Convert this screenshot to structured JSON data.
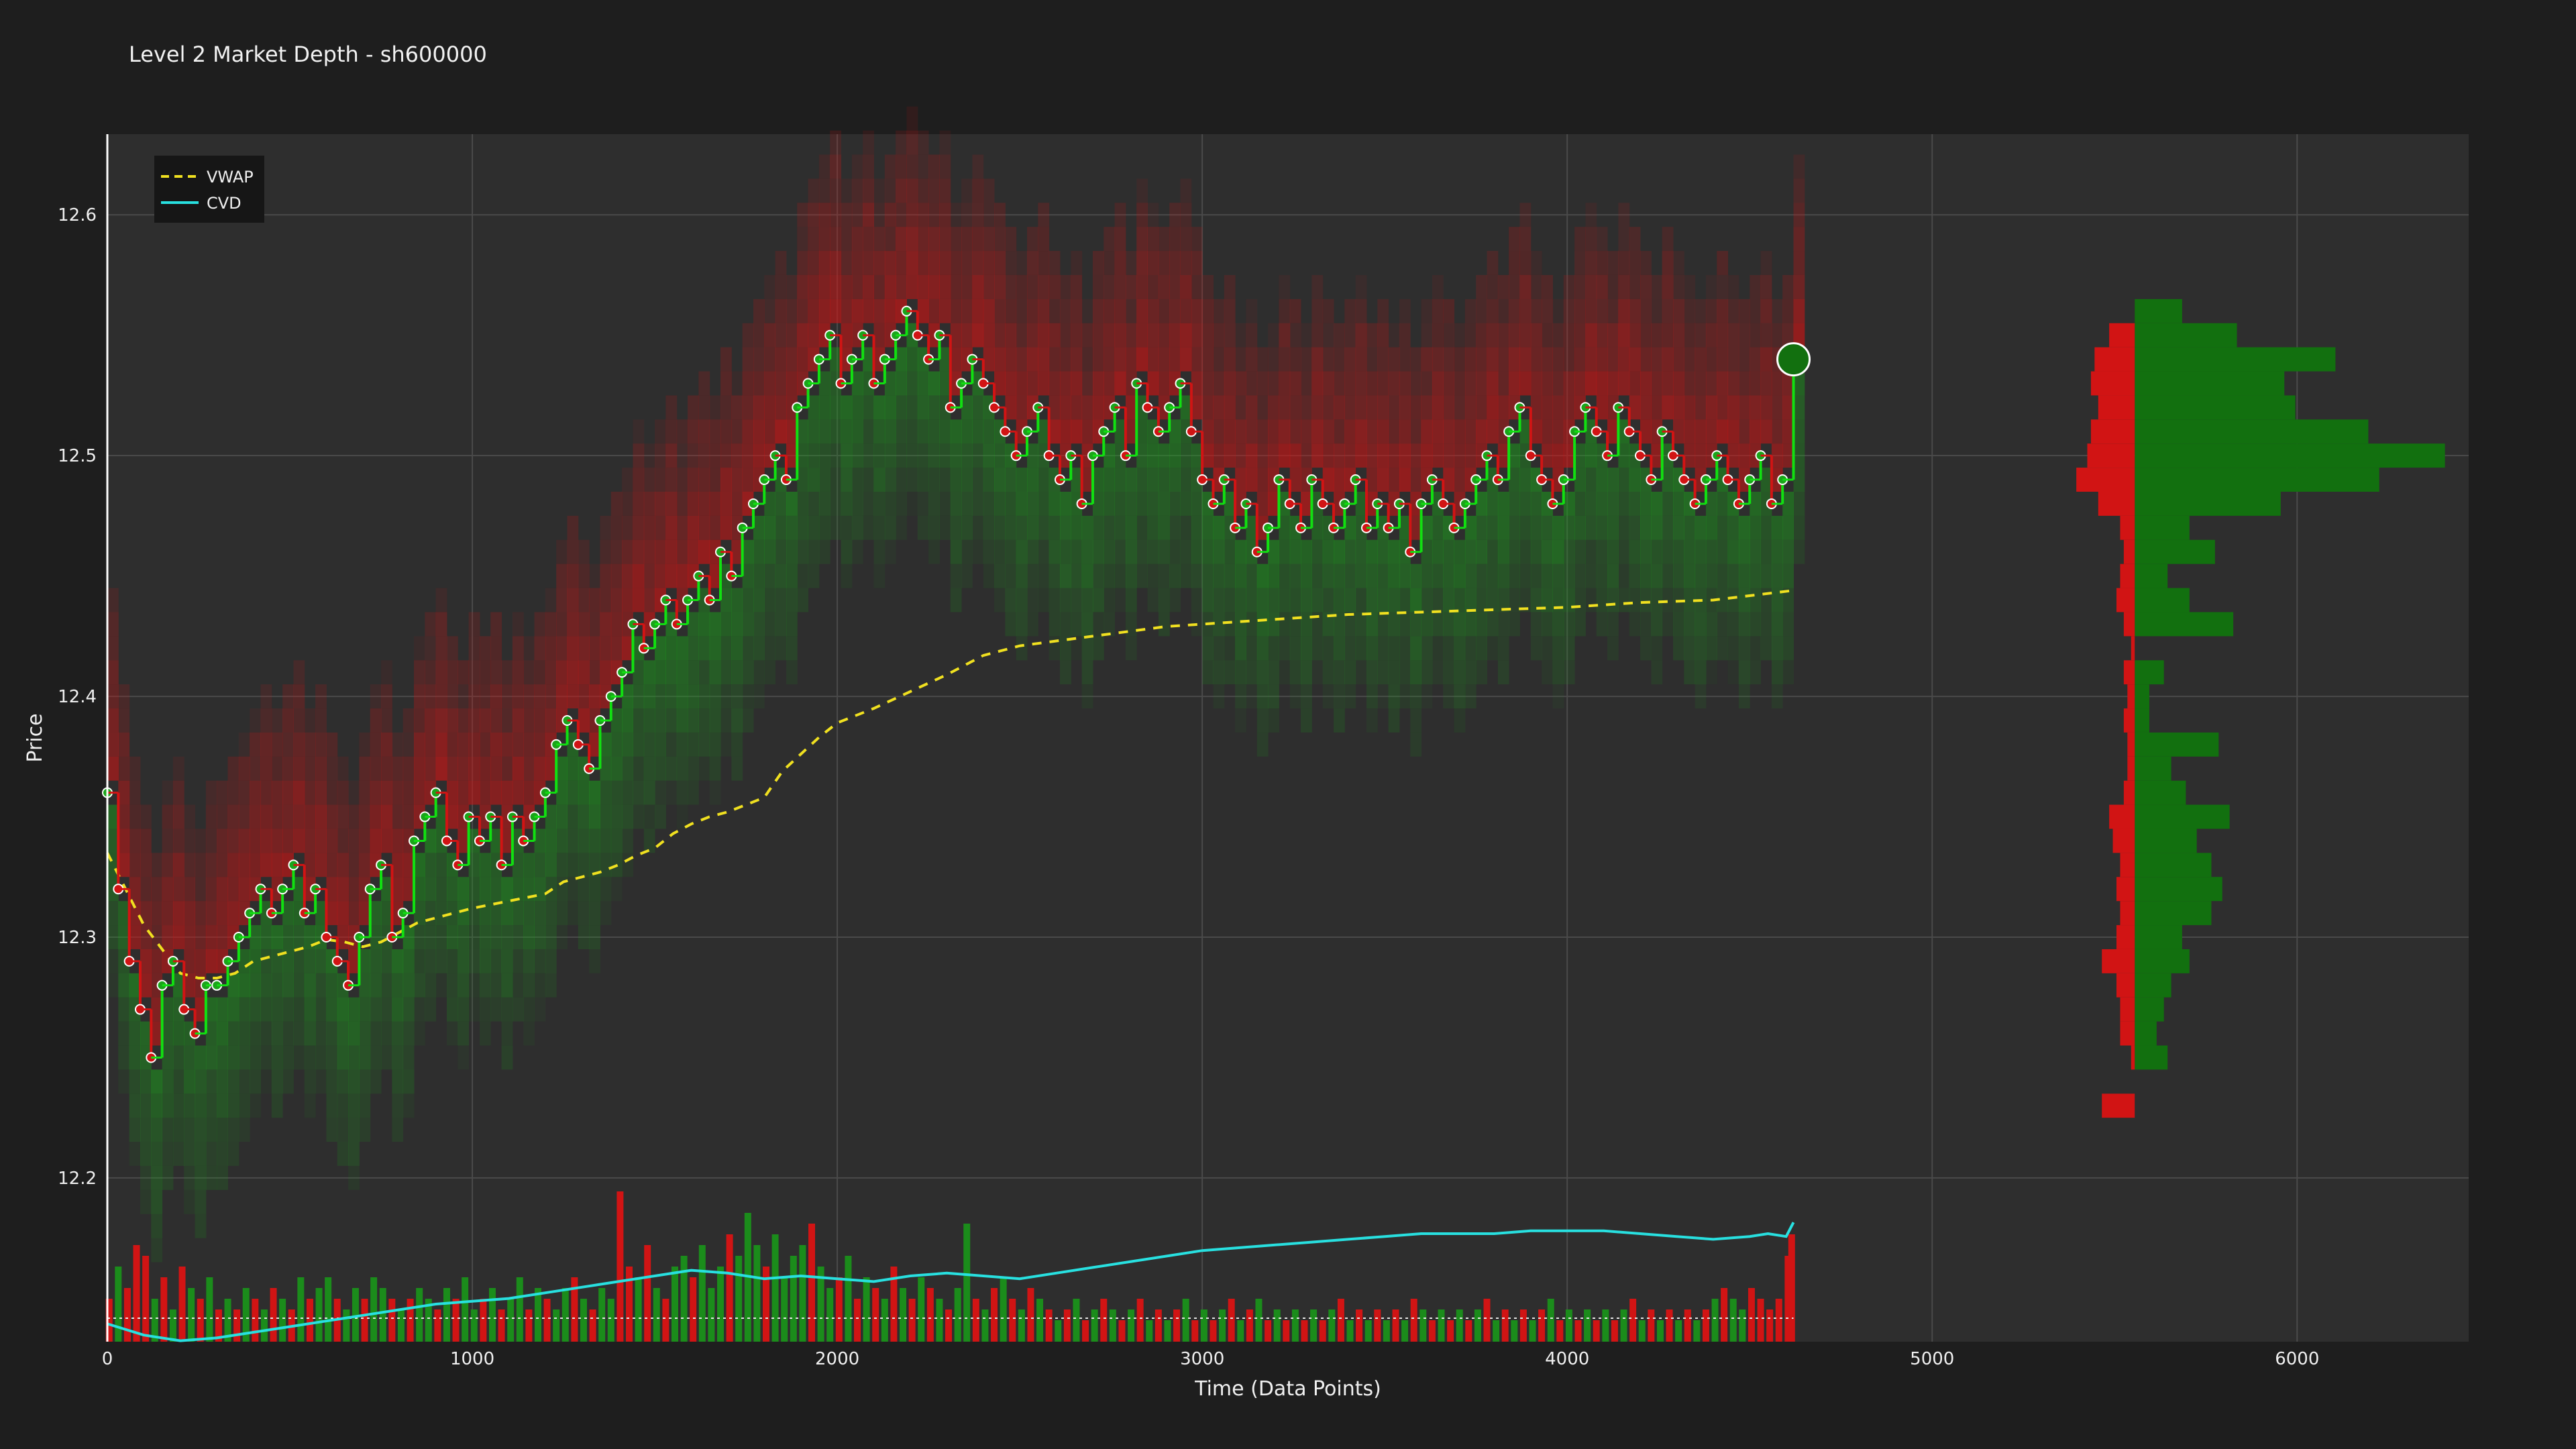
{
  "title": "Level 2 Market Depth - sh600000",
  "colors": {
    "background": "#1e1e1e",
    "plot_background": "#2e2e2e",
    "grid": "#4a4a4a",
    "buy": "#1aa51a",
    "bright_buy": "#11e011",
    "sell": "#d11414",
    "vwap": "#f0e020",
    "cvd": "#28e0e0"
  },
  "chart_data": {
    "type": "scatter",
    "title": "Level 2 Market Depth - sh600000",
    "xlabel": "Time (Data Points)",
    "ylabel": "Price",
    "xlim": [
      0,
      6470
    ],
    "ylim": [
      12.132,
      12.6335
    ],
    "x_ticks": [
      0,
      1000,
      2000,
      3000,
      4000,
      5000,
      6000
    ],
    "y_ticks": [
      12.2,
      12.3,
      12.4,
      12.5,
      12.6
    ],
    "grid": true,
    "legend_position": "top-left",
    "legend": [
      "VWAP",
      "CVD"
    ],
    "vwap": {
      "name": "VWAP",
      "style": "dashed",
      "x": [
        0,
        50,
        100,
        150,
        200,
        250,
        300,
        350,
        400,
        450,
        500,
        550,
        600,
        650,
        700,
        750,
        800,
        850,
        900,
        950,
        1000,
        1100,
        1200,
        1250,
        1300,
        1350,
        1400,
        1450,
        1500,
        1550,
        1600,
        1650,
        1700,
        1750,
        1800,
        1850,
        1900,
        1950,
        2000,
        2100,
        2200,
        2300,
        2350,
        2400,
        2500,
        2600,
        2700,
        2800,
        2900,
        3000,
        3200,
        3400,
        3600,
        3800,
        4000,
        4200,
        4400,
        4620
      ],
      "y": [
        12.335,
        12.32,
        12.305,
        12.295,
        12.285,
        12.283,
        12.283,
        12.285,
        12.29,
        12.292,
        12.294,
        12.296,
        12.299,
        12.298,
        12.296,
        12.298,
        12.302,
        12.306,
        12.308,
        12.31,
        12.312,
        12.315,
        12.318,
        12.323,
        12.325,
        12.327,
        12.33,
        12.334,
        12.337,
        12.343,
        12.347,
        12.35,
        12.352,
        12.355,
        12.358,
        12.369,
        12.376,
        12.383,
        12.389,
        12.395,
        12.402,
        12.409,
        12.413,
        12.417,
        12.421,
        12.423,
        12.425,
        12.427,
        12.429,
        12.43,
        12.432,
        12.434,
        12.435,
        12.436,
        12.437,
        12.439,
        12.44,
        12.444
      ]
    },
    "cvd": {
      "name": "CVD",
      "x": [
        0,
        100,
        200,
        300,
        400,
        500,
        600,
        700,
        800,
        900,
        1000,
        1100,
        1200,
        1300,
        1400,
        1500,
        1600,
        1700,
        1800,
        1900,
        2000,
        2100,
        2200,
        2300,
        2400,
        2500,
        2600,
        2700,
        2800,
        2900,
        3000,
        3100,
        3200,
        3300,
        3400,
        3500,
        3600,
        3700,
        3800,
        3900,
        4000,
        4100,
        4200,
        4300,
        4400,
        4500,
        4550,
        4600,
        4620
      ],
      "y": [
        -2,
        -6,
        -8,
        -7,
        -5,
        -3,
        -1,
        1,
        3,
        5,
        6,
        7,
        9,
        11,
        13,
        15,
        17,
        16,
        14,
        15,
        14,
        13,
        15,
        16,
        15,
        14,
        16,
        18,
        20,
        22,
        24,
        25,
        26,
        27,
        28,
        29,
        30,
        30,
        30,
        31,
        31,
        31,
        30,
        29,
        28,
        29,
        30,
        29,
        34
      ]
    },
    "horizontal_reference_line": {
      "cvd_value": 0,
      "style": "dotted"
    },
    "trades": {
      "x": [
        0,
        30,
        60,
        90,
        120,
        150,
        180,
        210,
        240,
        270,
        300,
        330,
        360,
        390,
        420,
        450,
        480,
        510,
        540,
        570,
        600,
        630,
        660,
        690,
        720,
        750,
        780,
        810,
        840,
        870,
        900,
        930,
        960,
        990,
        1020,
        1050,
        1080,
        1110,
        1140,
        1170,
        1200,
        1230,
        1260,
        1290,
        1320,
        1350,
        1380,
        1410,
        1440,
        1470,
        1500,
        1530,
        1560,
        1590,
        1620,
        1650,
        1680,
        1710,
        1740,
        1770,
        1800,
        1830,
        1860,
        1890,
        1920,
        1950,
        1980,
        2010,
        2040,
        2070,
        2100,
        2130,
        2160,
        2190,
        2220,
        2250,
        2280,
        2310,
        2340,
        2370,
        2400,
        2430,
        2460,
        2490,
        2520,
        2550,
        2580,
        2610,
        2640,
        2670,
        2700,
        2730,
        2760,
        2790,
        2820,
        2850,
        2880,
        2910,
        2940,
        2970,
        3000,
        3030,
        3060,
        3090,
        3120,
        3150,
        3180,
        3210,
        3240,
        3270,
        3300,
        3330,
        3360,
        3390,
        3420,
        3450,
        3480,
        3510,
        3540,
        3570,
        3600,
        3630,
        3660,
        3690,
        3720,
        3750,
        3780,
        3810,
        3840,
        3870,
        3900,
        3930,
        3960,
        3990,
        4020,
        4050,
        4080,
        4110,
        4140,
        4170,
        4200,
        4230,
        4260,
        4290,
        4320,
        4350,
        4380,
        4410,
        4440,
        4470,
        4500,
        4530,
        4560,
        4590,
        4620
      ],
      "y": [
        12.36,
        12.32,
        12.29,
        12.27,
        12.25,
        12.28,
        12.29,
        12.27,
        12.26,
        12.28,
        12.28,
        12.29,
        12.3,
        12.31,
        12.32,
        12.31,
        12.32,
        12.33,
        12.31,
        12.32,
        12.3,
        12.29,
        12.28,
        12.3,
        12.32,
        12.33,
        12.3,
        12.31,
        12.34,
        12.35,
        12.36,
        12.34,
        12.33,
        12.35,
        12.34,
        12.35,
        12.33,
        12.35,
        12.34,
        12.35,
        12.36,
        12.38,
        12.39,
        12.38,
        12.37,
        12.39,
        12.4,
        12.41,
        12.43,
        12.42,
        12.43,
        12.44,
        12.43,
        12.44,
        12.45,
        12.44,
        12.46,
        12.45,
        12.47,
        12.48,
        12.49,
        12.5,
        12.49,
        12.52,
        12.53,
        12.54,
        12.55,
        12.53,
        12.54,
        12.55,
        12.53,
        12.54,
        12.55,
        12.56,
        12.55,
        12.54,
        12.55,
        12.52,
        12.53,
        12.54,
        12.53,
        12.52,
        12.51,
        12.5,
        12.51,
        12.52,
        12.5,
        12.49,
        12.5,
        12.48,
        12.5,
        12.51,
        12.52,
        12.5,
        12.53,
        12.52,
        12.51,
        12.52,
        12.53,
        12.51,
        12.49,
        12.48,
        12.49,
        12.47,
        12.48,
        12.46,
        12.47,
        12.49,
        12.48,
        12.47,
        12.49,
        12.48,
        12.47,
        12.48,
        12.49,
        12.47,
        12.48,
        12.47,
        12.48,
        12.46,
        12.48,
        12.49,
        12.48,
        12.47,
        12.48,
        12.49,
        12.5,
        12.49,
        12.51,
        12.52,
        12.5,
        12.49,
        12.48,
        12.49,
        12.51,
        12.52,
        12.51,
        12.5,
        12.52,
        12.51,
        12.5,
        12.49,
        12.51,
        12.5,
        12.49,
        12.48,
        12.49,
        12.5,
        12.49,
        12.48,
        12.49,
        12.5,
        12.48,
        12.49,
        12.54
      ]
    },
    "volume_bars": {
      "x": [
        5,
        30,
        55,
        80,
        105,
        130,
        155,
        180,
        205,
        230,
        255,
        280,
        305,
        330,
        355,
        380,
        405,
        430,
        455,
        480,
        505,
        530,
        555,
        580,
        605,
        630,
        655,
        680,
        705,
        730,
        755,
        780,
        805,
        830,
        855,
        880,
        905,
        930,
        955,
        980,
        1005,
        1030,
        1055,
        1080,
        1105,
        1130,
        1155,
        1180,
        1205,
        1230,
        1255,
        1280,
        1305,
        1330,
        1355,
        1380,
        1405,
        1430,
        1455,
        1480,
        1505,
        1530,
        1555,
        1580,
        1605,
        1630,
        1655,
        1680,
        1705,
        1730,
        1755,
        1780,
        1805,
        1830,
        1855,
        1880,
        1905,
        1930,
        1955,
        1980,
        2005,
        2030,
        2055,
        2080,
        2105,
        2130,
        2155,
        2180,
        2205,
        2230,
        2255,
        2280,
        2305,
        2330,
        2355,
        2380,
        2405,
        2430,
        2455,
        2480,
        2505,
        2530,
        2555,
        2580,
        2605,
        2630,
        2655,
        2680,
        2705,
        2730,
        2755,
        2780,
        2805,
        2830,
        2855,
        2880,
        2905,
        2930,
        2955,
        2980,
        3005,
        3030,
        3055,
        3080,
        3105,
        3130,
        3155,
        3180,
        3205,
        3230,
        3255,
        3280,
        3305,
        3330,
        3355,
        3380,
        3405,
        3430,
        3455,
        3480,
        3505,
        3530,
        3555,
        3580,
        3605,
        3630,
        3655,
        3680,
        3705,
        3730,
        3755,
        3780,
        3805,
        3830,
        3855,
        3880,
        3905,
        3930,
        3955,
        3980,
        4005,
        4030,
        4055,
        4080,
        4105,
        4130,
        4155,
        4180,
        4205,
        4230,
        4255,
        4280,
        4305,
        4330,
        4355,
        4380,
        4405,
        4430,
        4455,
        4480,
        4505,
        4530,
        4555,
        4580,
        4605,
        4615
      ],
      "volume": [
        4,
        7,
        5,
        9,
        8,
        4,
        6,
        3,
        7,
        5,
        4,
        6,
        3,
        4,
        3,
        5,
        4,
        3,
        5,
        4,
        3,
        6,
        4,
        5,
        6,
        4,
        3,
        5,
        4,
        6,
        5,
        4,
        3,
        4,
        5,
        4,
        3,
        5,
        4,
        6,
        3,
        4,
        5,
        3,
        4,
        6,
        3,
        5,
        4,
        3,
        5,
        6,
        4,
        3,
        5,
        4,
        14,
        7,
        6,
        9,
        5,
        4,
        7,
        8,
        6,
        9,
        5,
        7,
        10,
        8,
        12,
        9,
        7,
        10,
        6,
        8,
        9,
        11,
        7,
        5,
        6,
        8,
        4,
        6,
        5,
        4,
        7,
        5,
        4,
        6,
        5,
        4,
        3,
        5,
        11,
        4,
        3,
        5,
        6,
        4,
        3,
        5,
        4,
        3,
        2,
        3,
        4,
        2,
        3,
        4,
        3,
        2,
        3,
        4,
        2,
        3,
        2,
        3,
        4,
        2,
        3,
        2,
        3,
        4,
        2,
        3,
        4,
        2,
        3,
        2,
        3,
        2,
        3,
        2,
        3,
        4,
        2,
        3,
        2,
        3,
        2,
        3,
        2,
        4,
        3,
        2,
        3,
        2,
        3,
        2,
        3,
        4,
        2,
        3,
        2,
        3,
        2,
        3,
        4,
        2,
        3,
        2,
        3,
        2,
        3,
        2,
        3,
        4,
        2,
        3,
        2,
        3,
        2,
        3,
        2,
        3,
        4,
        5,
        4,
        3,
        5,
        4,
        3,
        4,
        8,
        10
      ],
      "side": [
        "sell",
        "buy",
        "sell",
        "sell",
        "sell",
        "buy",
        "sell",
        "buy",
        "sell",
        "buy",
        "sell",
        "buy",
        "sell",
        "buy",
        "sell",
        "buy",
        "sell",
        "buy",
        "sell",
        "buy",
        "sell",
        "buy",
        "sell",
        "buy",
        "buy",
        "sell",
        "buy",
        "buy",
        "sell",
        "buy",
        "buy",
        "sell",
        "buy",
        "sell",
        "buy",
        "buy",
        "sell",
        "buy",
        "sell",
        "buy",
        "buy",
        "sell",
        "buy",
        "sell",
        "buy",
        "buy",
        "sell",
        "buy",
        "sell",
        "buy",
        "buy",
        "sell",
        "buy",
        "sell",
        "buy",
        "buy",
        "sell",
        "sell",
        "buy",
        "sell",
        "buy",
        "sell",
        "buy",
        "buy",
        "sell",
        "buy",
        "buy",
        "buy",
        "sell",
        "buy",
        "buy",
        "buy",
        "sell",
        "buy",
        "buy",
        "buy",
        "buy",
        "sell",
        "buy",
        "buy",
        "sell",
        "buy",
        "sell",
        "buy",
        "sell",
        "buy",
        "sell",
        "buy",
        "sell",
        "buy",
        "sell",
        "buy",
        "sell",
        "buy",
        "buy",
        "sell",
        "buy",
        "sell",
        "buy",
        "sell",
        "buy",
        "sell",
        "buy",
        "sell",
        "buy",
        "sell",
        "buy",
        "sell",
        "buy",
        "sell",
        "buy",
        "sell",
        "buy",
        "sell",
        "buy",
        "sell",
        "buy",
        "sell",
        "buy",
        "sell",
        "buy",
        "sell",
        "buy",
        "sell",
        "buy",
        "sell",
        "buy",
        "sell",
        "buy",
        "sell",
        "buy",
        "sell",
        "buy",
        "sell",
        "buy",
        "sell",
        "buy",
        "sell",
        "buy",
        "sell",
        "buy",
        "sell",
        "buy",
        "sell",
        "buy",
        "sell",
        "buy",
        "sell",
        "buy",
        "sell",
        "buy",
        "sell",
        "buy",
        "sell",
        "buy",
        "sell",
        "buy",
        "sell",
        "buy",
        "sell",
        "buy",
        "sell",
        "buy",
        "sell",
        "buy",
        "sell",
        "buy",
        "sell",
        "buy",
        "sell",
        "buy",
        "sell",
        "buy",
        "sell",
        "buy",
        "sell",
        "buy",
        "sell",
        "buy",
        "buy"
      ]
    },
    "volume_profile": {
      "price_levels": [
        12.23,
        12.25,
        12.26,
        12.27,
        12.28,
        12.29,
        12.3,
        12.31,
        12.32,
        12.33,
        12.34,
        12.35,
        12.36,
        12.37,
        12.38,
        12.39,
        12.4,
        12.41,
        12.42,
        12.43,
        12.44,
        12.45,
        12.46,
        12.47,
        12.48,
        12.49,
        12.5,
        12.51,
        12.52,
        12.53,
        12.54,
        12.55,
        12.56
      ],
      "buy_volume": [
        0,
        90,
        60,
        80,
        100,
        150,
        130,
        210,
        240,
        210,
        170,
        260,
        140,
        100,
        230,
        40,
        40,
        80,
        0,
        270,
        150,
        90,
        220,
        150,
        400,
        670,
        850,
        640,
        440,
        410,
        550,
        280,
        130
      ],
      "sell_volume": [
        90,
        10,
        40,
        40,
        50,
        90,
        50,
        40,
        50,
        40,
        60,
        70,
        30,
        20,
        20,
        30,
        20,
        30,
        10,
        30,
        50,
        40,
        30,
        40,
        100,
        160,
        130,
        120,
        100,
        120,
        110,
        70,
        0
      ]
    },
    "last_trade_marker": {
      "x": 4620,
      "y": 12.54,
      "side": "buy"
    }
  }
}
